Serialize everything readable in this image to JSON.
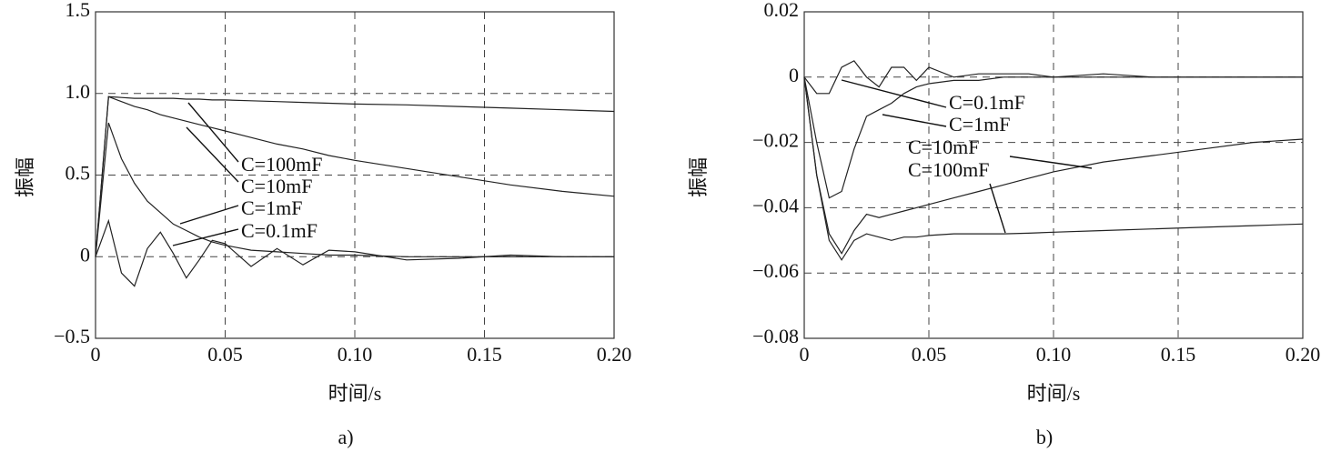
{
  "chart_data": [
    {
      "type": "line",
      "ylabel": "振幅",
      "xlabel": "时间/s",
      "caption": "a)",
      "grid": true,
      "color": "#222222",
      "xlim": [
        0,
        0.2
      ],
      "xticks": [
        0,
        0.05,
        {
          "value": 0.1,
          "label": "0.10"
        },
        0.15,
        {
          "value": 0.2,
          "label": "0.20"
        }
      ],
      "ylim": [
        -0.5,
        1.5
      ],
      "yticks": [
        {
          "value": -0.5,
          "label": "−0.5"
        },
        0,
        0.5,
        {
          "value": 1,
          "label": "1.0"
        },
        1.5
      ],
      "x": [
        0,
        0.005,
        0.01,
        0.015,
        0.02,
        0.025,
        0.03,
        0.035,
        0.04,
        0.045,
        0.05,
        0.06,
        0.07,
        0.08,
        0.09,
        0.1,
        0.12,
        0.14,
        0.16,
        0.18,
        0.2
      ],
      "series": [
        {
          "name": "C=100mF",
          "values": [
            0,
            0.98,
            0.975,
            0.97,
            0.97,
            0.97,
            0.97,
            0.965,
            0.965,
            0.96,
            0.96,
            0.955,
            0.95,
            0.945,
            0.94,
            0.935,
            0.93,
            0.92,
            0.91,
            0.9,
            0.89
          ]
        },
        {
          "name": "C=10mF",
          "values": [
            0,
            0.98,
            0.95,
            0.92,
            0.9,
            0.87,
            0.85,
            0.83,
            0.81,
            0.79,
            0.77,
            0.73,
            0.69,
            0.66,
            0.62,
            0.59,
            0.54,
            0.49,
            0.44,
            0.4,
            0.37
          ]
        },
        {
          "name": "C=1mF",
          "values": [
            0,
            0.82,
            0.6,
            0.45,
            0.34,
            0.27,
            0.2,
            0.16,
            0.12,
            0.09,
            0.07,
            0.04,
            0.03,
            0.02,
            0.01,
            0.01,
            0,
            0,
            0,
            0,
            0
          ]
        },
        {
          "name": "C=0.1mF",
          "values": [
            0,
            0.22,
            -0.1,
            -0.18,
            0.05,
            0.15,
            0.02,
            -0.13,
            -0.02,
            0.1,
            0.08,
            -0.06,
            0.05,
            -0.05,
            0.04,
            0.03,
            -0.02,
            -0.01,
            0.01,
            0,
            0
          ]
        }
      ]
    },
    {
      "type": "line",
      "ylabel": "振幅",
      "xlabel": "时间/s",
      "caption": "b)",
      "grid": true,
      "color": "#222222",
      "xlim": [
        0,
        0.2
      ],
      "xticks": [
        0,
        0.05,
        {
          "value": 0.1,
          "label": "0.10"
        },
        0.15,
        {
          "value": 0.2,
          "label": "0.20"
        }
      ],
      "ylim": [
        -0.08,
        0.02
      ],
      "yticks": [
        {
          "value": -0.08,
          "label": "−0.08"
        },
        {
          "value": -0.06,
          "label": "−0.06"
        },
        {
          "value": -0.04,
          "label": "−0.04"
        },
        {
          "value": -0.02,
          "label": "−0.02"
        },
        0,
        0.02
      ],
      "x": [
        0,
        0.005,
        0.01,
        0.015,
        0.02,
        0.025,
        0.03,
        0.035,
        0.04,
        0.045,
        0.05,
        0.06,
        0.07,
        0.08,
        0.09,
        0.1,
        0.12,
        0.14,
        0.16,
        0.18,
        0.2
      ],
      "series": [
        {
          "name": "C=0.1mF",
          "values": [
            0,
            -0.005,
            -0.005,
            0.003,
            0.005,
            0,
            -0.003,
            0.003,
            0.003,
            -0.001,
            0.003,
            0,
            0.001,
            0.001,
            0.001,
            0,
            0.001,
            0,
            0,
            0,
            0
          ]
        },
        {
          "name": "C=1mF",
          "values": [
            0,
            -0.02,
            -0.037,
            -0.035,
            -0.022,
            -0.012,
            -0.01,
            -0.008,
            -0.005,
            -0.003,
            -0.002,
            -0.001,
            -0.001,
            0,
            0,
            0,
            0,
            0,
            0,
            0,
            0
          ]
        },
        {
          "name": "C=10mF",
          "values": [
            0,
            -0.03,
            -0.048,
            -0.054,
            -0.047,
            -0.042,
            -0.043,
            -0.042,
            -0.041,
            -0.04,
            -0.039,
            -0.037,
            -0.035,
            -0.033,
            -0.031,
            -0.029,
            -0.026,
            -0.024,
            -0.022,
            -0.02,
            -0.019
          ]
        },
        {
          "name": "C=100mF",
          "values": [
            0,
            -0.03,
            -0.05,
            -0.056,
            -0.05,
            -0.048,
            -0.049,
            -0.05,
            -0.049,
            -0.049,
            -0.0485,
            -0.048,
            -0.048,
            -0.048,
            -0.0478,
            -0.0475,
            -0.047,
            -0.0465,
            -0.046,
            -0.0455,
            -0.045
          ]
        }
      ]
    }
  ]
}
